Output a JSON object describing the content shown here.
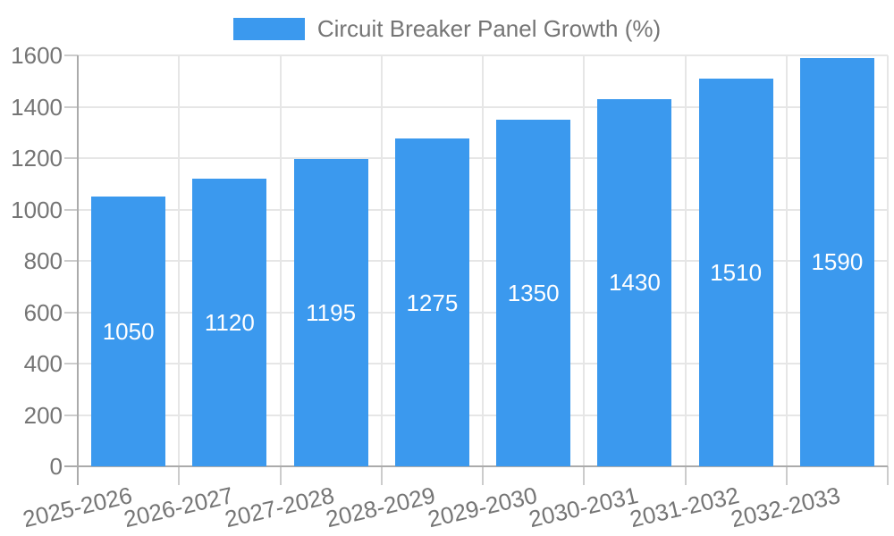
{
  "colors": {
    "background": "#ffffff",
    "bar": "#3b99ee",
    "bar_value_text": "#ffffff",
    "axis_text": "#757575",
    "title_text": "#757575",
    "gridline": "#e6e6e6",
    "axis_line": "#ababab",
    "tick_mark": "#cccccc"
  },
  "legend": {
    "label": "Circuit Breaker Panel Growth (%)",
    "swatch_color": "#3b99ee",
    "position": "top"
  },
  "chart_data": {
    "type": "bar",
    "title": "Circuit Breaker Panel Growth (%)",
    "series": [
      {
        "name": "Circuit Breaker Panel Growth (%)",
        "color": "#3b99ee",
        "values": [
          1050,
          1120,
          1195,
          1275,
          1350,
          1430,
          1510,
          1590
        ]
      }
    ],
    "categories": [
      "2025-2026",
      "2026-2027",
      "2027-2028",
      "2028-2029",
      "2029-2030",
      "2030-2031",
      "2031-2032",
      "2032-2033"
    ],
    "value_labels": [
      1050,
      1120,
      1195,
      1275,
      1350,
      1430,
      1510,
      1590
    ],
    "value_label_position": "inside-middle",
    "xlabel": "",
    "ylabel": "",
    "ylim": [
      0,
      1600
    ],
    "yticks": [
      0,
      200,
      400,
      600,
      800,
      1000,
      1200,
      1400,
      1600
    ],
    "grid": true,
    "x_gridlines_at_category_boundaries": true,
    "legend_position": "top-center",
    "x_tick_rotation_deg": -13
  }
}
